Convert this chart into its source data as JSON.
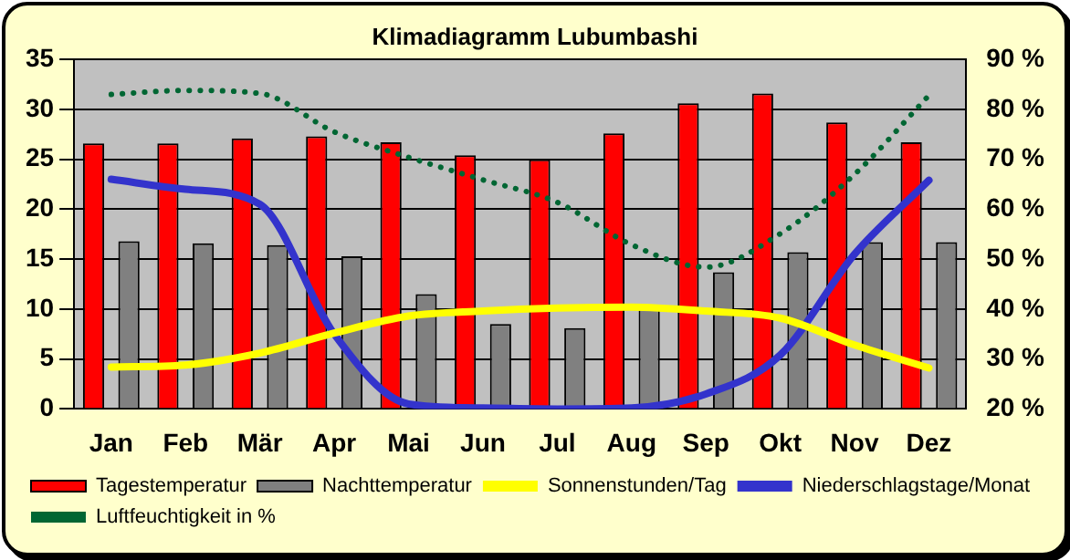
{
  "chart_data": {
    "type": "bar",
    "title": "Klimadiagramm Lubumbashi",
    "categories": [
      "Jan",
      "Feb",
      "Mär",
      "Apr",
      "Mai",
      "Jun",
      "Jul",
      "Aug",
      "Sep",
      "Okt",
      "Nov",
      "Dez"
    ],
    "series": [
      {
        "name": "Tagestemperatur",
        "color": "#ff0000",
        "values": [
          26.6,
          26.6,
          27.1,
          27.3,
          26.7,
          25.4,
          25.0,
          27.6,
          30.6,
          31.6,
          28.7,
          26.7
        ]
      },
      {
        "name": "Nachttemperatur",
        "color": "#808080",
        "values": [
          16.8,
          16.6,
          16.4,
          15.3,
          11.5,
          8.5,
          8.1,
          10.2,
          13.7,
          15.7,
          16.7,
          16.7
        ]
      },
      {
        "name": "Sonnenstunden/Tag",
        "type": "line",
        "color": "#ffff00",
        "values": [
          4.2,
          4.4,
          5.6,
          7.6,
          9.3,
          9.8,
          10.1,
          10.2,
          9.8,
          9.1,
          6.4,
          4.1
        ]
      },
      {
        "name": "Niederschlagstage/Monat",
        "type": "line",
        "color": "#3333cc",
        "values": [
          23,
          22,
          20.5,
          7.5,
          0.5,
          0.1,
          0,
          0.1,
          1.5,
          5.4,
          15.5,
          22.9
        ]
      },
      {
        "name": "Luftfeuchtigkeit in %",
        "type": "line",
        "axis": "y2",
        "color": "#006633",
        "line_style": "dotted",
        "values": [
          83,
          83.8,
          83.2,
          75.5,
          70.4,
          65.9,
          61.4,
          52.9,
          48.4,
          55.1,
          67,
          82.8
        ]
      }
    ],
    "ylim": [
      0,
      35
    ],
    "yticks": [
      0,
      5,
      10,
      15,
      20,
      25,
      30,
      35
    ],
    "y2lim": [
      20,
      90
    ],
    "y2ticks": [
      {
        "value": 20,
        "label": "20 %"
      },
      {
        "value": 30,
        "label": "30 %"
      },
      {
        "value": 40,
        "label": "40 %"
      },
      {
        "value": 50,
        "label": "50 %"
      },
      {
        "value": 60,
        "label": "60 %"
      },
      {
        "value": 70,
        "label": "70 %"
      },
      {
        "value": 80,
        "label": "80 %"
      },
      {
        "value": 90,
        "label": "90 %"
      }
    ],
    "grid": "y",
    "legend": "bottom",
    "marker": "none"
  }
}
